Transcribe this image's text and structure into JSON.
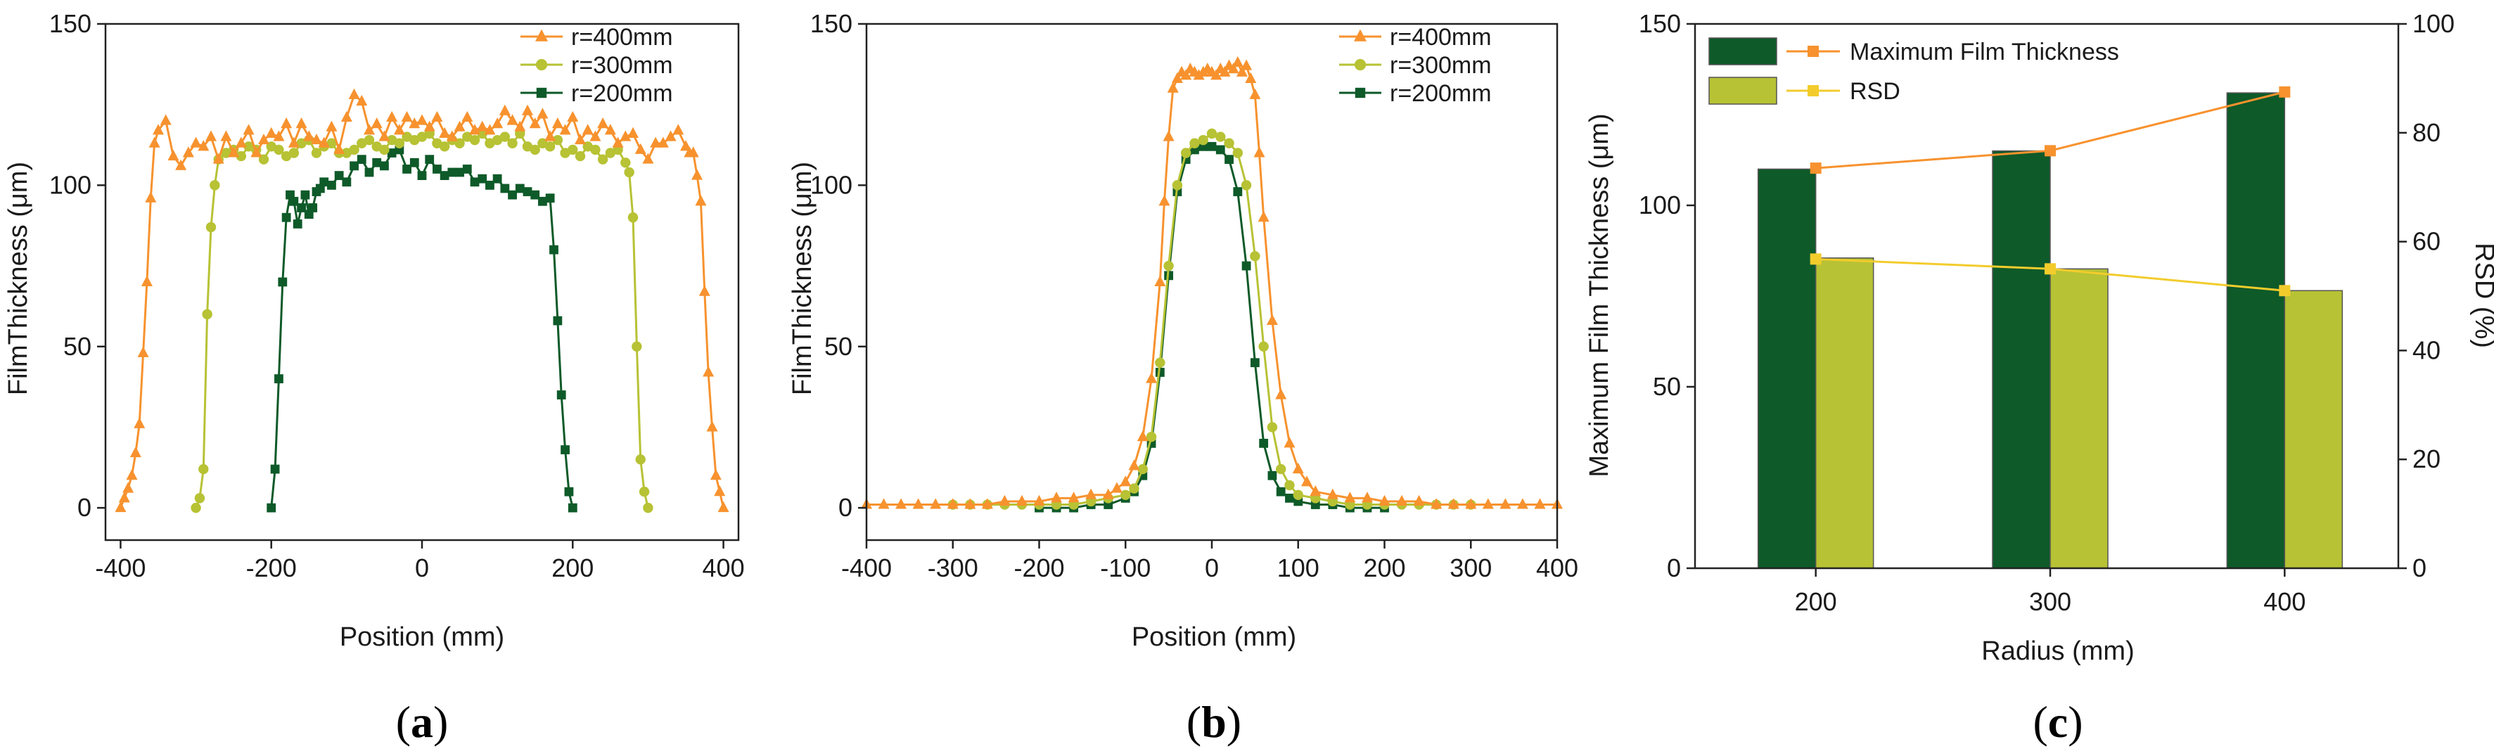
{
  "colors": {
    "orange": "#F7922E",
    "lime": "#B7C234",
    "dkgreen": "#0E5A29",
    "yellow": "#F3CC2C"
  },
  "panels": [
    {
      "open": "(",
      "letter": "a",
      "close": ")"
    },
    {
      "open": "(",
      "letter": "b",
      "close": ")"
    },
    {
      "open": "(",
      "letter": "c",
      "close": ")"
    }
  ],
  "chart_data": [
    {
      "type": "line",
      "xlabel": "Position (mm)",
      "ylabel": "FilmThickness (μm)",
      "xlim": [
        -420,
        420
      ],
      "ylim": [
        -10,
        150
      ],
      "xticks": [
        -400,
        -200,
        0,
        200,
        400
      ],
      "yticks": [
        0,
        50,
        100,
        150
      ],
      "legend_position": "top-right",
      "series": [
        {
          "name": "r=400mm",
          "marker": "triangle",
          "color": "#F7922E",
          "x": [
            -400,
            -395,
            -390,
            -385,
            -380,
            -375,
            -370,
            -365,
            -360,
            -355,
            -350,
            -340,
            -330,
            -320,
            -310,
            -300,
            -290,
            -280,
            -270,
            -260,
            -250,
            -240,
            -230,
            -220,
            -210,
            -200,
            -190,
            -180,
            -170,
            -160,
            -150,
            -140,
            -130,
            -120,
            -110,
            -100,
            -90,
            -80,
            -70,
            -60,
            -50,
            -40,
            -30,
            -20,
            -10,
            0,
            10,
            20,
            30,
            40,
            50,
            60,
            70,
            80,
            90,
            100,
            110,
            120,
            130,
            140,
            150,
            160,
            170,
            180,
            190,
            200,
            210,
            220,
            230,
            240,
            250,
            260,
            270,
            280,
            290,
            300,
            310,
            320,
            330,
            340,
            350,
            355,
            360,
            365,
            370,
            375,
            380,
            385,
            390,
            395,
            400
          ],
          "y": [
            0,
            3,
            6,
            10,
            17,
            26,
            48,
            70,
            96,
            113,
            117,
            120,
            109,
            106,
            110,
            113,
            112,
            115,
            108,
            115,
            110,
            113,
            117,
            110,
            114,
            116,
            115,
            119,
            113,
            119,
            115,
            114,
            113,
            118,
            111,
            121,
            128,
            126,
            117,
            119,
            115,
            121,
            117,
            121,
            119,
            120,
            118,
            121,
            116,
            115,
            118,
            121,
            117,
            118,
            117,
            119,
            123,
            120,
            118,
            123,
            119,
            122,
            115,
            119,
            117,
            121,
            114,
            117,
            115,
            119,
            117,
            113,
            115,
            116,
            111,
            108,
            113,
            113,
            115,
            117,
            112,
            110,
            110,
            103,
            95,
            67,
            42,
            25,
            10,
            5,
            0
          ]
        },
        {
          "name": "r=300mm",
          "marker": "circle",
          "color": "#B7C234",
          "x": [
            -300,
            -295,
            -290,
            -285,
            -280,
            -275,
            -270,
            -260,
            -250,
            -240,
            -230,
            -220,
            -210,
            -200,
            -190,
            -180,
            -170,
            -160,
            -150,
            -140,
            -130,
            -120,
            -110,
            -100,
            -90,
            -80,
            -70,
            -60,
            -50,
            -40,
            -30,
            -20,
            -10,
            0,
            10,
            20,
            30,
            40,
            50,
            60,
            70,
            80,
            90,
            100,
            110,
            120,
            130,
            140,
            150,
            160,
            170,
            180,
            190,
            200,
            210,
            220,
            230,
            240,
            250,
            260,
            270,
            275,
            280,
            285,
            290,
            295,
            300
          ],
          "y": [
            0,
            3,
            12,
            60,
            87,
            100,
            108,
            110,
            111,
            109,
            112,
            111,
            108,
            112,
            111,
            109,
            110,
            113,
            114,
            110,
            112,
            113,
            110,
            110,
            111,
            113,
            114,
            112,
            111,
            114,
            113,
            115,
            114,
            115,
            116,
            113,
            112,
            114,
            113,
            115,
            114,
            116,
            113,
            114,
            115,
            113,
            116,
            112,
            111,
            113,
            112,
            114,
            110,
            111,
            109,
            112,
            111,
            108,
            110,
            111,
            107,
            104,
            90,
            50,
            15,
            5,
            0
          ]
        },
        {
          "name": "r=200mm",
          "marker": "square",
          "color": "#0E5A29",
          "x": [
            -200,
            -195,
            -190,
            -185,
            -180,
            -175,
            -170,
            -165,
            -160,
            -155,
            -150,
            -145,
            -140,
            -135,
            -130,
            -120,
            -110,
            -100,
            -90,
            -80,
            -70,
            -60,
            -50,
            -40,
            -30,
            -20,
            -10,
            0,
            10,
            20,
            30,
            40,
            50,
            60,
            70,
            80,
            90,
            100,
            110,
            120,
            130,
            140,
            150,
            160,
            170,
            175,
            180,
            185,
            190,
            195,
            200
          ],
          "y": [
            0,
            12,
            40,
            70,
            90,
            97,
            95,
            88,
            93,
            97,
            91,
            93,
            98,
            99,
            101,
            100,
            103,
            101,
            106,
            108,
            104,
            107,
            106,
            110,
            111,
            105,
            107,
            103,
            108,
            105,
            103,
            104,
            104,
            105,
            101,
            102,
            100,
            102,
            99,
            97,
            99,
            98,
            97,
            95,
            96,
            80,
            58,
            35,
            18,
            5,
            0
          ]
        }
      ]
    },
    {
      "type": "line",
      "xlabel": "Position (mm)",
      "ylabel": "FilmThickness (μm)",
      "xlim": [
        -400,
        400
      ],
      "ylim": [
        -10,
        150
      ],
      "xticks": [
        -400,
        -300,
        -200,
        -100,
        0,
        100,
        200,
        300,
        400
      ],
      "yticks": [
        0,
        50,
        100,
        150
      ],
      "legend_position": "top-right",
      "series": [
        {
          "name": "r=400mm",
          "marker": "triangle",
          "color": "#F7922E",
          "x": [
            -400,
            -380,
            -360,
            -340,
            -320,
            -300,
            -280,
            -260,
            -240,
            -220,
            -200,
            -180,
            -160,
            -140,
            -120,
            -110,
            -100,
            -90,
            -80,
            -70,
            -60,
            -55,
            -50,
            -45,
            -40,
            -35,
            -30,
            -25,
            -20,
            -15,
            -10,
            -5,
            0,
            5,
            10,
            15,
            20,
            25,
            30,
            35,
            40,
            45,
            50,
            55,
            60,
            70,
            80,
            90,
            100,
            110,
            120,
            140,
            160,
            180,
            200,
            220,
            240,
            260,
            280,
            300,
            320,
            340,
            360,
            380,
            400
          ],
          "y": [
            1,
            1,
            1,
            1,
            1,
            1,
            1,
            1,
            2,
            2,
            2,
            3,
            3,
            4,
            4,
            6,
            8,
            13,
            22,
            40,
            70,
            95,
            115,
            130,
            133,
            135,
            134,
            136,
            135,
            134,
            135,
            136,
            135,
            134,
            136,
            135,
            137,
            136,
            138,
            135,
            137,
            133,
            128,
            110,
            90,
            58,
            35,
            20,
            12,
            8,
            5,
            4,
            3,
            3,
            2,
            2,
            2,
            1,
            1,
            1,
            1,
            1,
            1,
            1,
            1
          ]
        },
        {
          "name": "r=300mm",
          "marker": "circle",
          "color": "#B7C234",
          "x": [
            -300,
            -280,
            -260,
            -240,
            -220,
            -200,
            -180,
            -160,
            -140,
            -120,
            -100,
            -90,
            -80,
            -70,
            -60,
            -50,
            -40,
            -30,
            -20,
            -10,
            0,
            10,
            20,
            30,
            40,
            50,
            60,
            70,
            80,
            90,
            100,
            120,
            140,
            160,
            180,
            200,
            220,
            240,
            260,
            280,
            300
          ],
          "y": [
            1,
            1,
            1,
            1,
            1,
            1,
            1,
            1,
            2,
            3,
            4,
            6,
            12,
            22,
            45,
            75,
            100,
            110,
            113,
            114,
            116,
            115,
            113,
            110,
            100,
            78,
            50,
            25,
            12,
            7,
            4,
            3,
            2,
            1,
            1,
            1,
            1,
            1,
            1,
            1,
            1
          ]
        },
        {
          "name": "r=200mm",
          "marker": "square",
          "color": "#0E5A29",
          "x": [
            -200,
            -180,
            -160,
            -140,
            -120,
            -100,
            -90,
            -80,
            -70,
            -60,
            -50,
            -40,
            -30,
            -20,
            -10,
            0,
            10,
            20,
            30,
            40,
            50,
            60,
            70,
            80,
            90,
            100,
            120,
            140,
            160,
            180,
            200
          ],
          "y": [
            0,
            0,
            0,
            1,
            1,
            3,
            5,
            10,
            20,
            42,
            72,
            98,
            108,
            111,
            112,
            112,
            111,
            108,
            98,
            75,
            45,
            20,
            10,
            5,
            3,
            2,
            1,
            1,
            0,
            0,
            0
          ]
        }
      ]
    },
    {
      "type": "bar",
      "xlabel": "Radius (mm)",
      "ylabel": "Maximum Film Thickness (μm)",
      "y2label": "RSD (%)",
      "categories": [
        "200",
        "300",
        "400"
      ],
      "ylim": [
        0,
        150
      ],
      "y2lim": [
        0,
        100
      ],
      "yticks": [
        0,
        50,
        100,
        150
      ],
      "y2ticks": [
        0,
        20,
        40,
        60,
        80,
        100
      ],
      "legend_position": "top-left",
      "series": [
        {
          "name": "Maximum Film Thickness",
          "axis": "left",
          "color": "#0E5A29",
          "values": [
            110,
            115,
            131
          ]
        },
        {
          "name": "RSD",
          "axis": "right",
          "color": "#B7C234",
          "values": [
            57,
            55,
            51
          ]
        }
      ],
      "lines": [
        {
          "name": "Maximum Film Thickness",
          "axis": "right",
          "color": "#F7922E",
          "marker": "square",
          "values": [
            73.5,
            76.7,
            87.5
          ]
        },
        {
          "name": "RSD",
          "axis": "right",
          "color": "#F3CC2C",
          "marker": "square",
          "values": [
            56.8,
            55,
            51
          ]
        }
      ]
    }
  ]
}
